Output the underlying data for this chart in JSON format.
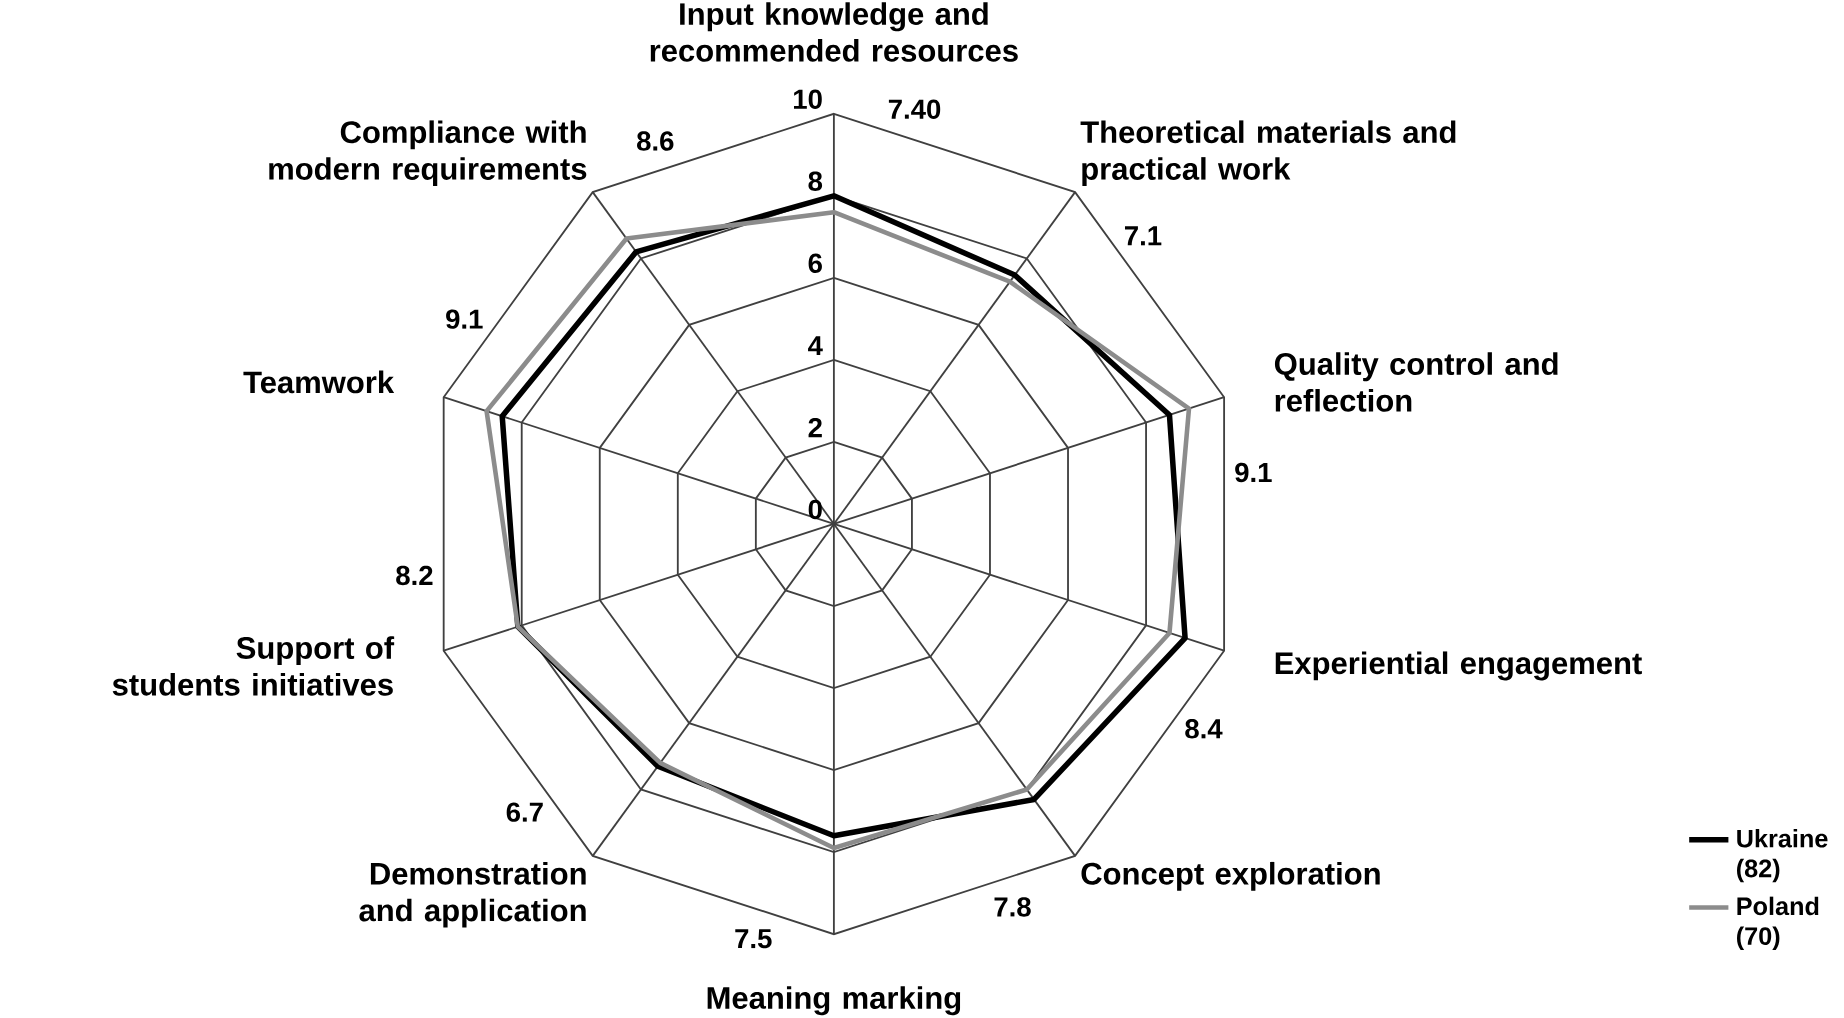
{
  "chart_data": {
    "type": "radar",
    "categories": [
      "Input knowledge and recommended resources",
      "Theoretical materials and practical work",
      "Quality control and reflection",
      "Experiential engagement",
      "Concept exploration",
      "Meaning marking",
      "Demonstration and application",
      "Support of students initiatives",
      "Teamwork",
      "Compliance with modern requirements"
    ],
    "series": [
      {
        "name": "Ukraine (82)",
        "color": "#000000",
        "values": [
          8.0,
          7.5,
          8.6,
          9.0,
          8.3,
          7.6,
          7.3,
          8.1,
          8.5,
          8.2
        ]
      },
      {
        "name": "Poland (70)",
        "color": "#8c8c8c",
        "values": [
          7.6,
          7.3,
          9.1,
          8.6,
          8.0,
          7.9,
          7.2,
          8.1,
          8.9,
          8.6
        ]
      }
    ],
    "ylim": [
      0,
      10
    ],
    "yticks": [
      0,
      2,
      4,
      6,
      8,
      10
    ],
    "grid": true,
    "legend": "bottom right",
    "marker": "none",
    "annotations": [
      "7.40",
      "7.1",
      "9.1",
      "8.4",
      "7.8",
      "7.5",
      "6.7",
      "8.2",
      "9.1",
      "8.6"
    ]
  }
}
